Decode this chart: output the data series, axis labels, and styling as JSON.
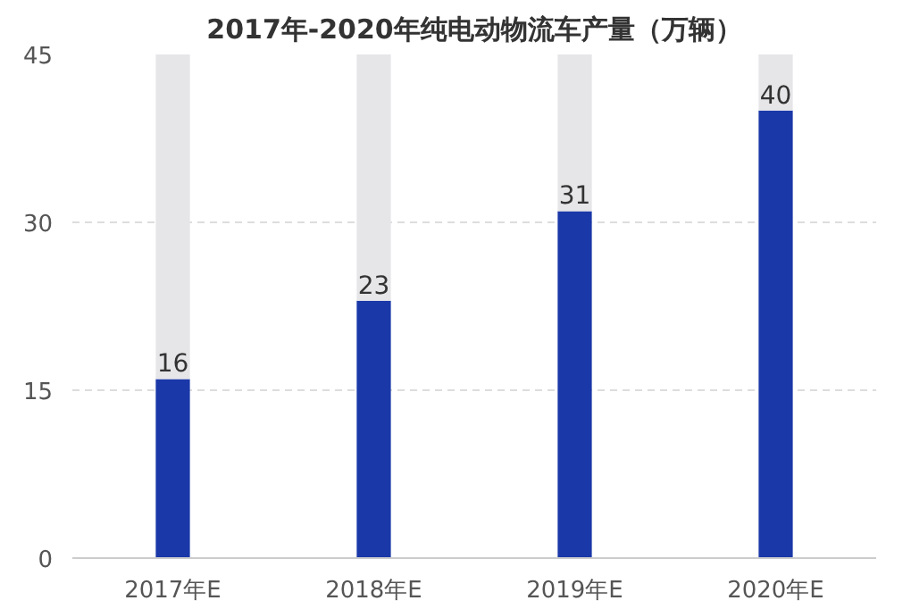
{
  "chart_data": {
    "type": "bar",
    "title": "2017年-2020年纯电动物流车产量（万辆）",
    "categories": [
      "2017年E",
      "2018年E",
      "2019年E",
      "2020年E"
    ],
    "stacked": true,
    "series": [
      {
        "color": "#1a38a8",
        "values": [
          16,
          23,
          31,
          40
        ],
        "value_labels": [
          "16",
          "23",
          "31",
          "40"
        ]
      },
      {
        "color": "#e6e5e8",
        "values": [
          29,
          22,
          14,
          5
        ]
      }
    ],
    "ylim": [
      0,
      45
    ],
    "yticks": [
      0,
      15,
      30,
      45
    ],
    "grid": "y"
  }
}
